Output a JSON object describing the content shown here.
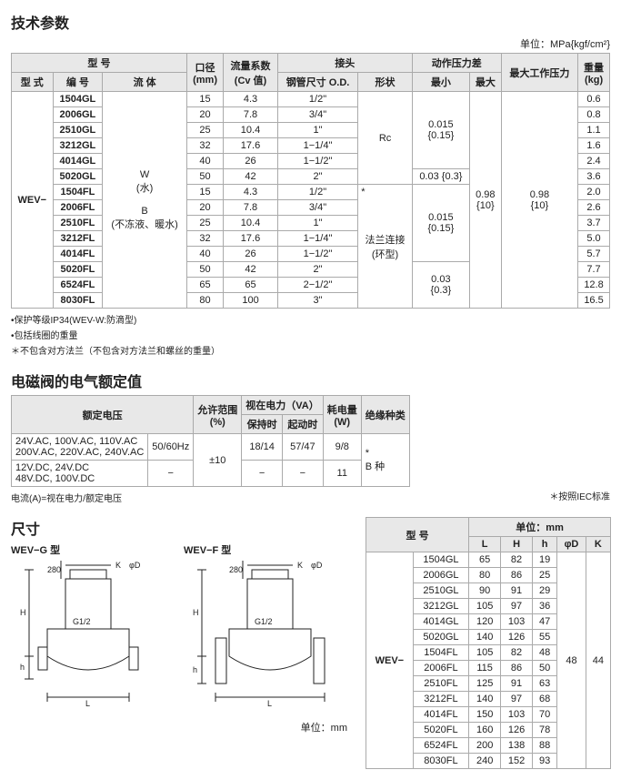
{
  "tech": {
    "title": "技术参数",
    "unit": "单位：MPa{kgf/cm²}",
    "headers": {
      "model": "型 号",
      "style": "型 式",
      "code": "编 号",
      "fluid": "流 体",
      "bore": "口径",
      "cv": "流量系数",
      "joint": "接头",
      "press": "动作压力差",
      "mm": "(mm)",
      "cvval": "(Cv 值)",
      "od": "钢管尺寸 O.D.",
      "shape": "形状",
      "min": "最小",
      "max": "最大",
      "maxwork": "最大工作压力",
      "weight": "重量",
      "kg": "(kg)"
    },
    "prefix": "WEV−",
    "gl": [
      "1504GL",
      "2006GL",
      "2510GL",
      "3212GL",
      "4014GL",
      "5020GL"
    ],
    "fl": [
      "1504FL",
      "2006FL",
      "2510FL",
      "3212FL",
      "4014FL",
      "5020FL",
      "6524FL",
      "8030FL"
    ],
    "fluidW": "W",
    "fluidWsub": "(水)",
    "fluidB": "B",
    "fluidBsub": "(不冻液、暖水)",
    "rows": [
      [
        "15",
        "4.3",
        "1/2\"",
        "0.6"
      ],
      [
        "20",
        "7.8",
        "3/4\"",
        "0.8"
      ],
      [
        "25",
        "10.4",
        "1\"",
        "1.1"
      ],
      [
        "32",
        "17.6",
        "1−1/4\"",
        "1.6"
      ],
      [
        "40",
        "26",
        "1−1/2\"",
        "2.4"
      ],
      [
        "50",
        "42",
        "2\"",
        "3.6"
      ],
      [
        "15",
        "4.3",
        "1/2\"",
        "2.0"
      ],
      [
        "20",
        "7.8",
        "3/4\"",
        "2.6"
      ],
      [
        "25",
        "10.4",
        "1\"",
        "3.7"
      ],
      [
        "32",
        "17.6",
        "1−1/4\"",
        "5.0"
      ],
      [
        "40",
        "26",
        "1−1/2\"",
        "5.7"
      ],
      [
        "50",
        "42",
        "2\"",
        "7.7"
      ],
      [
        "65",
        "65",
        "2−1/2\"",
        "12.8"
      ],
      [
        "80",
        "100",
        "3\"",
        "16.5"
      ]
    ],
    "shapeRc": "Rc",
    "shapeFlange": "法兰连接",
    "shapeFlangeSub": "(环型)",
    "star": "*",
    "min1": "0.015",
    "min1sub": "{0.15}",
    "min2": "0.03 {0.3}",
    "min3": "0.015",
    "min3sub": "{0.15}",
    "min4": "0.03",
    "min4sub": "{0.3}",
    "maxv": "0.98",
    "maxsub": "{10}",
    "workv": "0.98",
    "worksub": "{10}",
    "notes": [
      "•保护等级IP34(WEV-W:防滴型)",
      "•包括线圈的重量",
      "＊不包含对方法兰（不包含对方法兰和螺丝的重量）"
    ]
  },
  "elec": {
    "title": "电磁阀的电气额定值",
    "h": {
      "rated": "额定电压",
      "tol": "允许范围",
      "tolpct": "(%)",
      "now": "视在电力（VA）",
      "hold": "保持时",
      "start": "起动时",
      "power": "耗电量",
      "powerW": "(W)",
      "ins": "绝缘种类"
    },
    "r1v": "24V.AC, 100V.AC, 110V.AC\n200V.AC, 220V.AC, 240V.AC",
    "r1f": "50/60Hz",
    "r2v": "12V.DC, 24V.DC\n48V.DC, 100V.DC",
    "r2f": "−",
    "tol": "±10",
    "r1h": "18/14",
    "r1s": "57/47",
    "r1p": "9/8",
    "r2h": "−",
    "r2s": "−",
    "r2p": "11",
    "insstar": "*",
    "ins": "B 种",
    "note1": "电流(A)=视在电力/额定电压",
    "note2": "＊按照IEC标准"
  },
  "dim": {
    "title": "尺寸",
    "g": "WEV−G 型",
    "f": "WEV−F 型",
    "unit": "单位：mm",
    "h": {
      "model": "型 号",
      "unit": "单位：mm",
      "L": "L",
      "H": "H",
      "hs": "h",
      "D": "φD",
      "K": "K"
    },
    "prefix": "WEV−",
    "rows": [
      [
        "1504GL",
        "65",
        "82",
        "19"
      ],
      [
        "2006GL",
        "80",
        "86",
        "25"
      ],
      [
        "2510GL",
        "90",
        "91",
        "29"
      ],
      [
        "3212GL",
        "105",
        "97",
        "36"
      ],
      [
        "4014GL",
        "120",
        "103",
        "47"
      ],
      [
        "5020GL",
        "140",
        "126",
        "55"
      ],
      [
        "1504FL",
        "105",
        "82",
        "48"
      ],
      [
        "2006FL",
        "115",
        "86",
        "50"
      ],
      [
        "2510FL",
        "125",
        "91",
        "63"
      ],
      [
        "3212FL",
        "140",
        "97",
        "68"
      ],
      [
        "4014FL",
        "150",
        "103",
        "70"
      ],
      [
        "5020FL",
        "160",
        "126",
        "78"
      ],
      [
        "6524FL",
        "200",
        "138",
        "88"
      ],
      [
        "8030FL",
        "240",
        "152",
        "93"
      ]
    ],
    "D": "48",
    "K": "44"
  },
  "svg": {
    "h280": "280",
    "hK": "K",
    "hD": "φD",
    "hG": "G1/2",
    "hH": "H",
    "hhs": "h",
    "hL": "L"
  }
}
